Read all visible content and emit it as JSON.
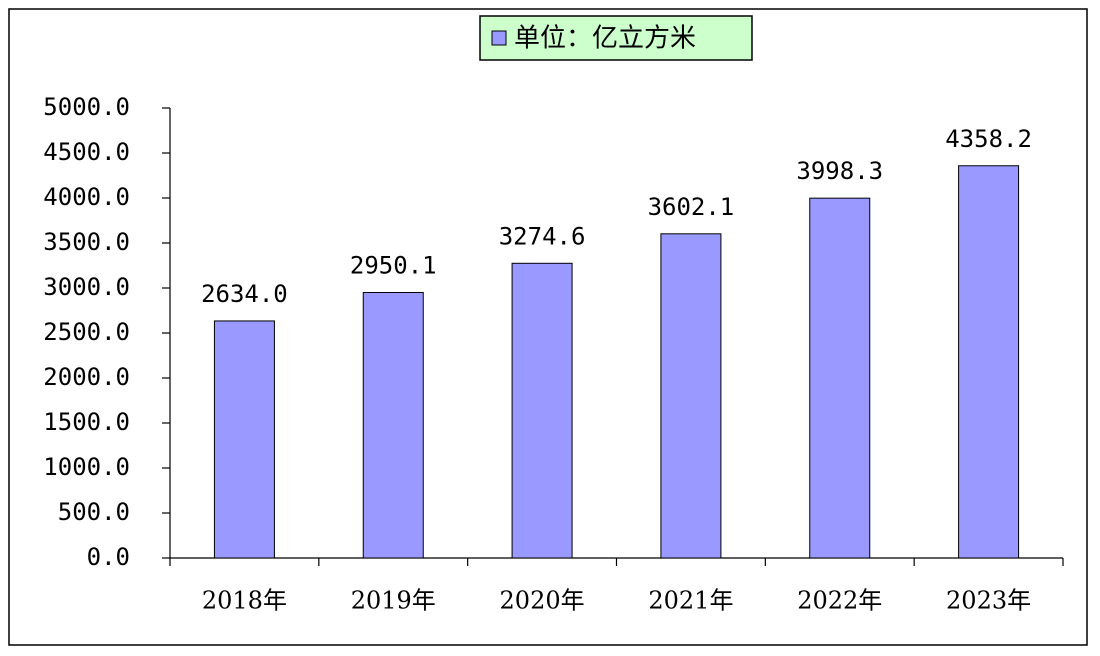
{
  "chart_data": {
    "type": "bar",
    "categories": [
      "2018年",
      "2019年",
      "2020年",
      "2021年",
      "2022年",
      "2023年"
    ],
    "series": [
      {
        "name": "单位：亿立方米",
        "color": "#9999ff",
        "values": [
          2634.0,
          2950.1,
          3274.6,
          3602.1,
          3998.3,
          4358.2
        ],
        "value_labels": [
          "2634.0",
          "2950.1",
          "3274.6",
          "3602.1",
          "3998.3",
          "4358.2"
        ]
      }
    ],
    "ylim": [
      0,
      5000
    ],
    "yticks": [
      {
        "value": 0,
        "label": "0.0"
      },
      {
        "value": 500,
        "label": "500.0"
      },
      {
        "value": 1000,
        "label": "1000.0"
      },
      {
        "value": 1500,
        "label": "1500.0"
      },
      {
        "value": 2000,
        "label": "2000.0"
      },
      {
        "value": 2500,
        "label": "2500.0"
      },
      {
        "value": 3000,
        "label": "3000.0"
      },
      {
        "value": 3500,
        "label": "3500.0"
      },
      {
        "value": 4000,
        "label": "4000.0"
      },
      {
        "value": 4500,
        "label": "4500.0"
      },
      {
        "value": 5000,
        "label": "5000.0"
      }
    ],
    "legend": "top",
    "grid": false
  }
}
